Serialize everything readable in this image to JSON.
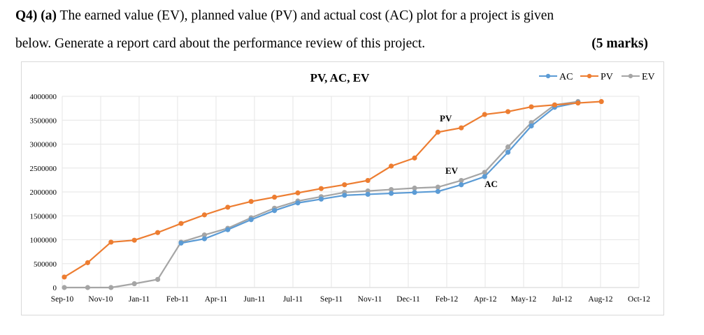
{
  "question": {
    "line1_prefix": "Q4) (a)",
    "line1": " The earned value (EV), planned value (PV) and actual cost (AC) plot for a project is given",
    "line2": "below. Generate a report card about the performance review of this project.",
    "marks": "(5 marks)"
  },
  "chart_data": {
    "type": "line",
    "title": "PV, AC, EV",
    "xlabel": "",
    "ylabel": "",
    "ylim": [
      0,
      4000000
    ],
    "yticks": [
      "0",
      "500000",
      "1000000",
      "1500000",
      "2000000",
      "2500000",
      "3000000",
      "3500000",
      "4000000"
    ],
    "xtick_labels": [
      "Sep-10",
      "Nov-10",
      "Jan-11",
      "Feb-11",
      "Apr-11",
      "Jun-11",
      "Jul-11",
      "Sep-11",
      "Nov-11",
      "Dec-11",
      "Feb-12",
      "Apr-12",
      "May-12",
      "Jul-12",
      "Aug-12",
      "Oct-12"
    ],
    "grid": true,
    "legend": "top-right",
    "annotations": [
      "PV",
      "EV",
      "AC"
    ],
    "series": [
      {
        "name": "AC",
        "color": "#5b9bd5",
        "values": [
          null,
          null,
          null,
          null,
          null,
          930000,
          1020000,
          1210000,
          1420000,
          1610000,
          1770000,
          1850000,
          1930000,
          1950000,
          1970000,
          1990000,
          2010000,
          2150000,
          2320000,
          2830000,
          3380000,
          3770000,
          3870000,
          null
        ]
      },
      {
        "name": "PV",
        "color": "#ed7d31",
        "values": [
          220000,
          520000,
          950000,
          990000,
          1150000,
          1340000,
          1520000,
          1680000,
          1800000,
          1890000,
          1980000,
          2070000,
          2150000,
          2240000,
          2540000,
          2710000,
          3250000,
          3340000,
          3620000,
          3680000,
          3780000,
          3820000,
          3860000,
          3890000
        ]
      },
      {
        "name": "EV",
        "color": "#a5a5a5",
        "values": [
          0,
          0,
          0,
          80000,
          170000,
          950000,
          1100000,
          1240000,
          1460000,
          1660000,
          1810000,
          1900000,
          1990000,
          2020000,
          2050000,
          2080000,
          2100000,
          2240000,
          2410000,
          2940000,
          3450000,
          3820000,
          3890000,
          null
        ]
      }
    ]
  }
}
